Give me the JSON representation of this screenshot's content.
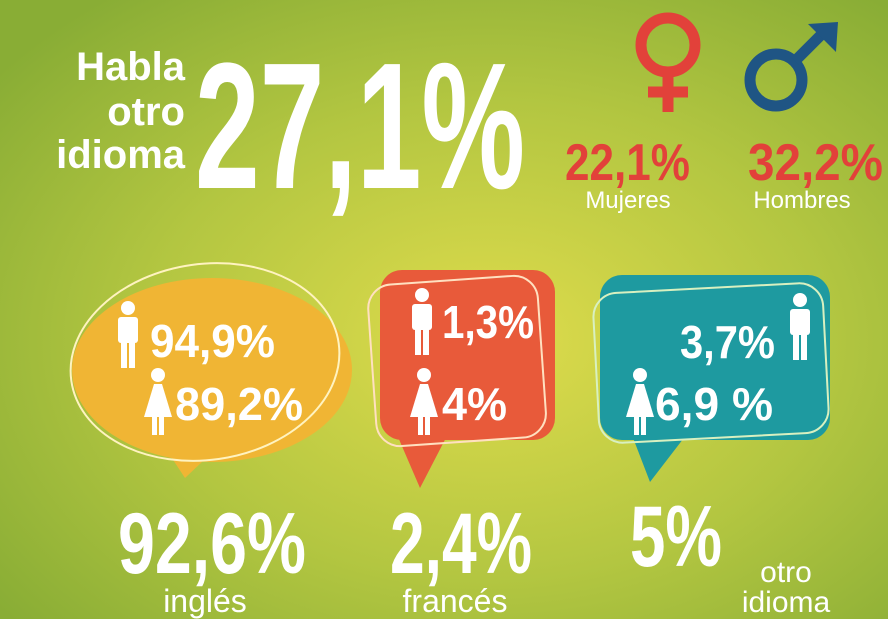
{
  "header": {
    "title_lines": [
      "Habla",
      "otro",
      "idioma"
    ],
    "value": "27,1%"
  },
  "gender": {
    "women": {
      "value": "22,1%",
      "label": "Mujeres"
    },
    "men": {
      "value": "32,2%",
      "label": "Hombres"
    }
  },
  "languages": [
    {
      "men": "94,9%",
      "women": "89,2%",
      "total": "92,6%",
      "label": [
        "inglés"
      ]
    },
    {
      "men": "1,3%",
      "women": "4%",
      "total": "2,4%",
      "label": [
        "francés"
      ]
    },
    {
      "men": "3,7%",
      "women": "6,9 %",
      "total": "5%",
      "label": [
        "otro",
        "idioma"
      ]
    }
  ]
}
